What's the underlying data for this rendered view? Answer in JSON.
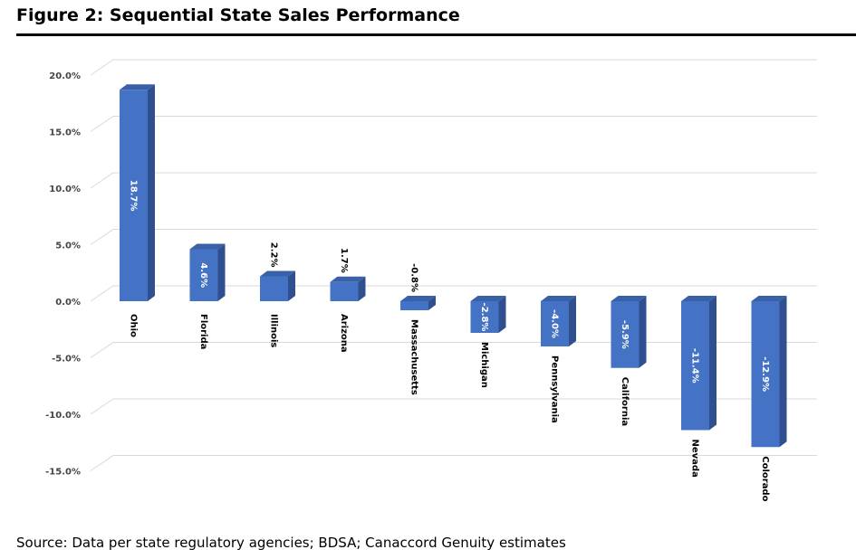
{
  "figure": {
    "title": "Figure 2: Sequential State Sales Performance",
    "source": "Source: Data per state regulatory agencies; BDSA; Canaccord Genuity estimates"
  },
  "colors": {
    "bar_front": "#4472C4",
    "bar_side": "#2F4F8F",
    "bar_top": "#3A61A8",
    "grid": "#D9D9D9",
    "label_inside": "#FFFFFF",
    "label_outside": "#000000"
  },
  "chart_data": {
    "type": "bar",
    "style": "3d-column",
    "categories": [
      "Ohio",
      "Florida",
      "Illinois",
      "Arizona",
      "Massachusetts",
      "Michigan",
      "Pennsylvania",
      "California",
      "Nevada",
      "Colorado"
    ],
    "values": [
      18.7,
      4.6,
      2.2,
      1.7,
      -0.8,
      -2.8,
      -4.0,
      -5.9,
      -11.4,
      -12.9
    ],
    "value_labels": [
      "18.7%",
      "4.6%",
      "2.2%",
      "1.7%",
      "-0.8%",
      "-2.8%",
      "-4.0%",
      "-5.9%",
      "-11.4%",
      "-12.9%"
    ],
    "yticks": [
      20,
      15,
      10,
      5,
      0,
      -5,
      -10,
      -15
    ],
    "ytick_labels": [
      "20.0%",
      "15.0%",
      "10.0%",
      "5.0%",
      "0.0%",
      "-5.0%",
      "-10.0%",
      "-15.0%"
    ],
    "ylim": [
      -15,
      20
    ],
    "grid": true,
    "legend": "none"
  }
}
